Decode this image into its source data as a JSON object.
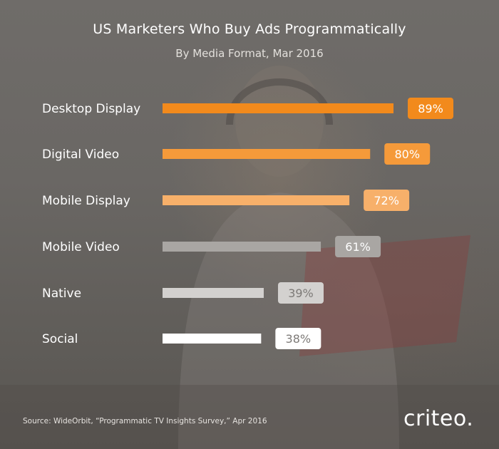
{
  "chart_data": {
    "type": "bar",
    "orientation": "horizontal",
    "title": "US Marketers Who Buy Ads Programmatically",
    "subtitle": "By Media Format, Mar 2016",
    "categories": [
      "Desktop Display",
      "Digital Video",
      "Mobile Display",
      "Mobile Video",
      "Native",
      "Social"
    ],
    "values": [
      89,
      80,
      72,
      61,
      39,
      38
    ],
    "value_labels": [
      "89%",
      "80%",
      "72%",
      "61%",
      "39%",
      "38%"
    ],
    "bar_colors": [
      "#f28a1c",
      "#f59a3a",
      "#f7b06a",
      "#a9a6a3",
      "#d3d1cf",
      "#ffffff"
    ],
    "label_text_colors": [
      "#ffffff",
      "#ffffff",
      "#ffffff",
      "#ffffff",
      "#7d7a77",
      "#7d7a77"
    ],
    "xlim": [
      0,
      100
    ],
    "grid": false
  },
  "source": "Source: WideOrbit, “Programmatic TV Insights Survey,” Apr 2016",
  "logo": "criteo."
}
